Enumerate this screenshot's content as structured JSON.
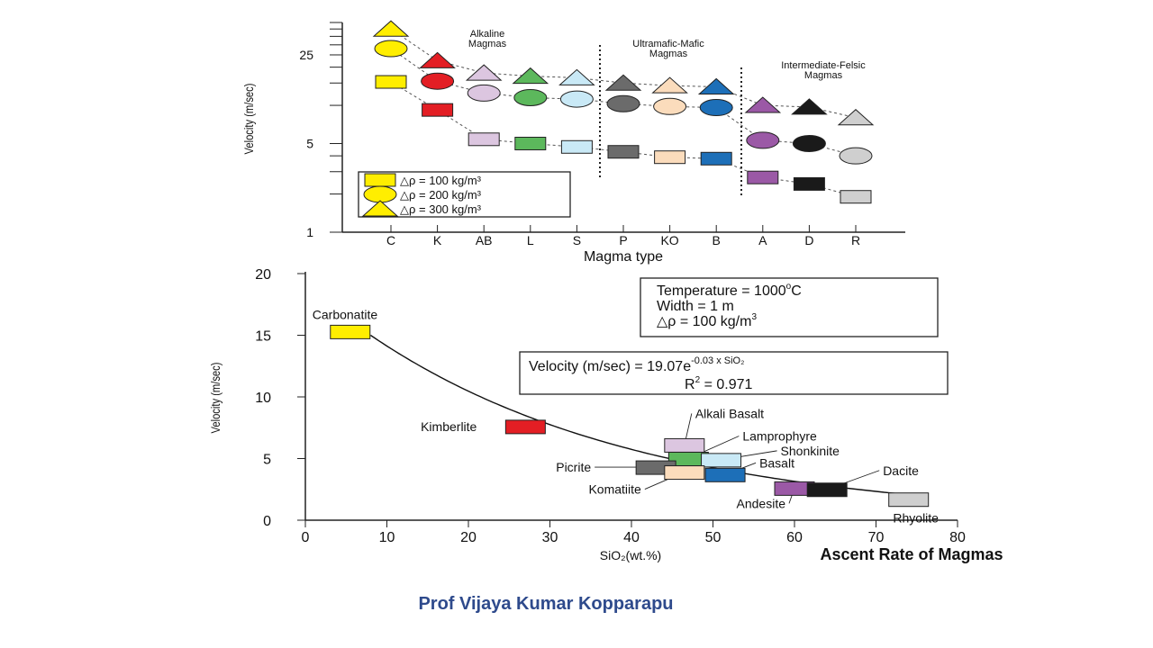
{
  "footer": {
    "author": "Prof Vijaya Kumar Kopparapu"
  },
  "colors": {
    "C": "#ffee00",
    "K": "#e31e24",
    "AB": "#dcc6e0",
    "L": "#5cb85c",
    "S": "#c9e9f6",
    "P": "#6b6b6b",
    "KO": "#fbdcbc",
    "B": "#1d6fb8",
    "A": "#9b59a6",
    "D": "#1a1a1a",
    "R": "#cfcfcf",
    "accent_footer": "#2e4a8c"
  },
  "chart_data": [
    {
      "type": "scatter",
      "title": "",
      "xlabel": "Magma type",
      "ylabel": "Velocity (m/sec)",
      "y_scale": "log",
      "ylim": [
        1,
        45
      ],
      "y_ticks": [
        "1",
        "5",
        "25"
      ],
      "categories": [
        "C",
        "K",
        "AB",
        "L",
        "S",
        "P",
        "KO",
        "B",
        "A",
        "D",
        "R"
      ],
      "groups": [
        {
          "label": "Alkaline Magmas",
          "categories": [
            "C",
            "K",
            "AB",
            "L",
            "S"
          ]
        },
        {
          "label": "Ultramafic-Mafic Magmas",
          "categories": [
            "P",
            "KO",
            "B"
          ]
        },
        {
          "label": "Intermediate-Felsic Magmas",
          "categories": [
            "A",
            "D",
            "R"
          ]
        }
      ],
      "series": [
        {
          "name": "△ρ = 100 kg/m³",
          "marker": "square",
          "values": [
            15.3,
            9.2,
            5.4,
            5.0,
            4.7,
            4.3,
            3.9,
            3.8,
            2.7,
            2.4,
            1.9
          ]
        },
        {
          "name": "△ρ = 200 kg/m³",
          "marker": "circle",
          "values": [
            28.0,
            15.5,
            12.5,
            11.5,
            11.2,
            10.3,
            9.8,
            9.6,
            5.3,
            5.0,
            4.0
          ]
        },
        {
          "name": "△ρ = 300 kg/m³",
          "marker": "triangle",
          "values": [
            40.0,
            22.5,
            18.0,
            17.0,
            16.5,
            15.0,
            14.3,
            14.0,
            10.0,
            9.7,
            8.0
          ]
        }
      ],
      "legend_position": "bottom-left",
      "legend": [
        {
          "marker": "square",
          "label": "△ρ = 100 kg/m³"
        },
        {
          "marker": "circle",
          "label": "△ρ = 200 kg/m³"
        },
        {
          "marker": "triangle",
          "label": "△ρ = 300 kg/m³"
        }
      ]
    },
    {
      "type": "scatter",
      "title": "Ascent Rate of Magmas",
      "xlabel": "SiO₂(wt.%)",
      "ylabel": "Velocity (m/sec)",
      "xlim": [
        0,
        80
      ],
      "ylim": [
        0,
        20
      ],
      "x_ticks": [
        0,
        10,
        20,
        30,
        40,
        50,
        60,
        70,
        80
      ],
      "y_ticks": [
        0,
        5,
        10,
        15,
        20
      ],
      "points": [
        {
          "name": "Carbonatite",
          "x": 5.5,
          "y": 15.3,
          "color_key": "C"
        },
        {
          "name": "Kimberlite",
          "x": 27.0,
          "y": 7.6,
          "color_key": "K"
        },
        {
          "name": "Alkali Basalt",
          "x": 46.5,
          "y": 6.1,
          "color_key": "AB"
        },
        {
          "name": "Lamprophyre",
          "x": 47.0,
          "y": 5.0,
          "color_key": "L"
        },
        {
          "name": "Shonkinite",
          "x": 51.0,
          "y": 4.9,
          "color_key": "S"
        },
        {
          "name": "Picrite",
          "x": 43.0,
          "y": 4.3,
          "color_key": "P"
        },
        {
          "name": "Komatiite",
          "x": 46.5,
          "y": 3.9,
          "color_key": "KO"
        },
        {
          "name": "Basalt",
          "x": 51.5,
          "y": 3.7,
          "color_key": "B"
        },
        {
          "name": "Andesite",
          "x": 60.0,
          "y": 2.6,
          "color_key": "A"
        },
        {
          "name": "Dacite",
          "x": 64.0,
          "y": 2.5,
          "color_key": "D"
        },
        {
          "name": "Rhyolite",
          "x": 74.0,
          "y": 1.7,
          "color_key": "R"
        }
      ],
      "fit": {
        "a": 19.07,
        "b": -0.03,
        "x_range": [
          8,
          75
        ]
      },
      "info_box": {
        "line1": "Temperature = 1000",
        "line1_sup": "o",
        "line1_tail": "C",
        "line2": "Width = 1 m",
        "line3": "△ρ = 100 kg/m",
        "line3_sup": "3"
      },
      "equation_box": {
        "lhs": "Velocity (m/sec) = 19.07e",
        "exp": "-0.03 x SiO₂",
        "r2_label": "R",
        "r2_sup": "2",
        "r2_value": " = 0.971"
      }
    }
  ]
}
